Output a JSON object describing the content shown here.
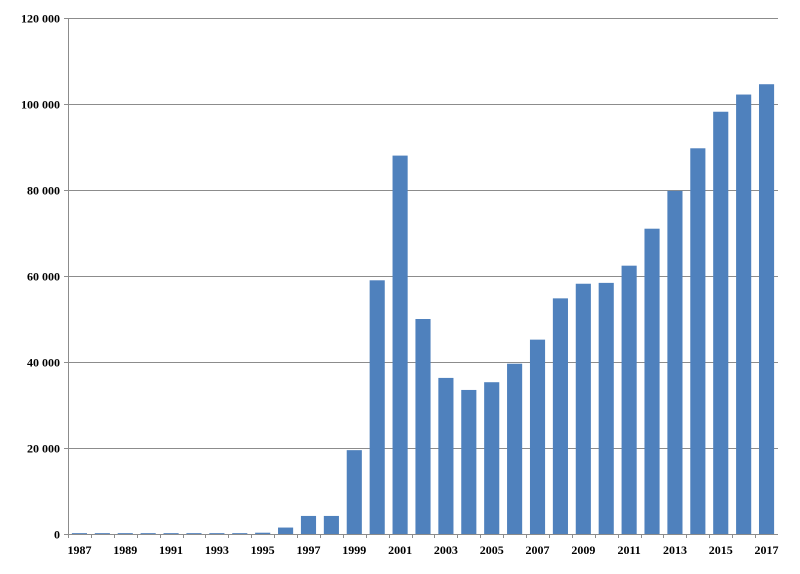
{
  "chart_data": {
    "type": "bar",
    "title": "",
    "xlabel": "",
    "ylabel": "",
    "ylim": [
      0,
      120000
    ],
    "yticks": [
      0,
      20000,
      40000,
      60000,
      80000,
      100000,
      120000
    ],
    "ytick_labels": [
      "0",
      "20 000",
      "40 000",
      "60 000",
      "80 000",
      "100 000",
      "120 000"
    ],
    "xtick_labels": [
      "1987",
      "1989",
      "1991",
      "1993",
      "1995",
      "1997",
      "1999",
      "2001",
      "2003",
      "2005",
      "2007",
      "2009",
      "2011",
      "2013",
      "2015",
      "2017"
    ],
    "categories": [
      "1987",
      "1988",
      "1989",
      "1990",
      "1991",
      "1992",
      "1993",
      "1994",
      "1995",
      "1996",
      "1997",
      "1998",
      "1999",
      "2000",
      "2001",
      "2002",
      "2003",
      "2004",
      "2005",
      "2006",
      "2007",
      "2008",
      "2009",
      "2010",
      "2011",
      "2012",
      "2013",
      "2014",
      "2015",
      "2016",
      "2017"
    ],
    "values": [
      200,
      200,
      200,
      200,
      200,
      200,
      200,
      200,
      300,
      1500,
      4200,
      4200,
      19500,
      59000,
      88000,
      50000,
      36300,
      33500,
      35300,
      39600,
      45200,
      54800,
      58200,
      58400,
      62400,
      71000,
      79800,
      89700,
      98200,
      102200,
      104600
    ],
    "grid": "horizontal",
    "legend": "none",
    "colors": {
      "bar": "#4f81bd",
      "grid": "#8c8c8c",
      "axis": "#8c8c8c"
    }
  }
}
